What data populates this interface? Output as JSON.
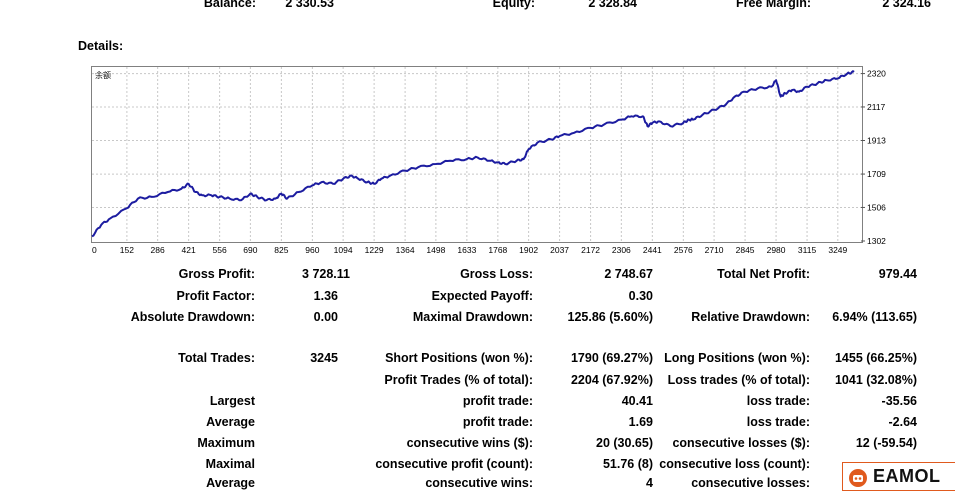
{
  "summary": {
    "balance_label": "Balance:",
    "balance_value": "2 330.53",
    "equity_label": "Equity:",
    "equity_value": "2 328.84",
    "free_margin_label": "Free Margin:",
    "free_margin_value": "2 324.16"
  },
  "details_label": "Details:",
  "chart_data": {
    "type": "line",
    "chart_caption": "余额",
    "x_ticks": [
      0,
      152,
      286,
      421,
      556,
      690,
      825,
      960,
      1094,
      1229,
      1364,
      1498,
      1633,
      1768,
      1902,
      2037,
      2172,
      2306,
      2441,
      2576,
      2710,
      2845,
      2980,
      3115,
      3249
    ],
    "y_ticks": [
      1302,
      1506,
      1709,
      1913,
      2117,
      2320
    ],
    "xlim": [
      0,
      3350
    ],
    "ylim": [
      1302,
      2360
    ],
    "grid": true,
    "line_color": "#1c1ca0",
    "series": [
      {
        "x": [
          0,
          40,
          80,
          150,
          200,
          260,
          330,
          390,
          421,
          450,
          480,
          520,
          556,
          600,
          650,
          690,
          720,
          760,
          800,
          825,
          850,
          900,
          960,
          1000,
          1050,
          1094,
          1130,
          1160,
          1200,
          1229,
          1260,
          1300,
          1364,
          1420,
          1498,
          1560,
          1633,
          1680,
          1730,
          1768,
          1800,
          1850,
          1880,
          1902,
          1940,
          2000,
          2037,
          2100,
          2172,
          2230,
          2306,
          2350,
          2400,
          2420,
          2441,
          2470,
          2520,
          2576,
          2600,
          2620,
          2660,
          2710,
          2760,
          2800,
          2845,
          2900,
          2960,
          2980,
          3000,
          3020,
          3050,
          3080,
          3115,
          3160,
          3200,
          3249,
          3290,
          3320
        ],
        "y": [
          1330,
          1400,
          1440,
          1500,
          1560,
          1570,
          1600,
          1620,
          1650,
          1600,
          1580,
          1580,
          1570,
          1560,
          1550,
          1590,
          1570,
          1550,
          1560,
          1590,
          1560,
          1600,
          1640,
          1660,
          1650,
          1680,
          1700,
          1680,
          1660,
          1650,
          1680,
          1700,
          1730,
          1750,
          1770,
          1790,
          1800,
          1810,
          1790,
          1780,
          1770,
          1790,
          1800,
          1860,
          1900,
          1920,
          1940,
          1960,
          1990,
          2010,
          2040,
          2060,
          2060,
          2000,
          2020,
          2030,
          2000,
          2020,
          2040,
          2040,
          2070,
          2100,
          2130,
          2180,
          2210,
          2230,
          2240,
          2280,
          2180,
          2200,
          2220,
          2210,
          2240,
          2260,
          2280,
          2290,
          2320,
          2330
        ]
      }
    ]
  },
  "stats": {
    "gross_profit_label": "Gross Profit:",
    "gross_profit_value": "3 728.11",
    "gross_loss_label": "Gross Loss:",
    "gross_loss_value": "2 748.67",
    "total_net_profit_label": "Total Net Profit:",
    "total_net_profit_value": "979.44",
    "profit_factor_label": "Profit Factor:",
    "profit_factor_value": "1.36",
    "expected_payoff_label": "Expected Payoff:",
    "expected_payoff_value": "0.30",
    "absolute_drawdown_label": "Absolute Drawdown:",
    "absolute_drawdown_value": "0.00",
    "maximal_drawdown_label": "Maximal Drawdown:",
    "maximal_drawdown_value": "125.86 (5.60%)",
    "relative_drawdown_label": "Relative Drawdown:",
    "relative_drawdown_value": "6.94% (113.65)",
    "total_trades_label": "Total Trades:",
    "total_trades_value": "3245",
    "short_positions_label": "Short Positions (won %):",
    "short_positions_value": "1790 (69.27%)",
    "long_positions_label": "Long Positions (won %):",
    "long_positions_value": "1455 (66.25%)",
    "profit_trades_label": "Profit Trades (% of total):",
    "profit_trades_value": "2204 (67.92%)",
    "loss_trades_label": "Loss trades (% of total):",
    "loss_trades_value": "1041 (32.08%)",
    "largest_label": "Largest",
    "largest_profit_label": "profit trade:",
    "largest_profit_value": "40.41",
    "largest_loss_label": "loss trade:",
    "largest_loss_value": "-35.56",
    "average_label": "Average",
    "average_profit_label": "profit trade:",
    "average_profit_value": "1.69",
    "average_loss_label": "loss trade:",
    "average_loss_value": "-2.64",
    "maximum_label": "Maximum",
    "max_cons_wins_label": "consecutive wins ($):",
    "max_cons_wins_value": "20 (30.65)",
    "max_cons_losses_label": "consecutive losses ($):",
    "max_cons_losses_value": "12 (-59.54)",
    "maximal_label": "Maximal",
    "maximal_cons_profit_label": "consecutive profit (count):",
    "maximal_cons_profit_value": "51.76 (8)",
    "maximal_cons_loss_label": "consecutive loss (count):",
    "average2_label": "Average",
    "avg_cons_wins_label": "consecutive wins:",
    "avg_cons_wins_value": "4",
    "avg_cons_losses_label": "consecutive losses:"
  },
  "logo": {
    "text": "EAMOL",
    "icon": "robot-icon",
    "color": "#e05a1e"
  }
}
